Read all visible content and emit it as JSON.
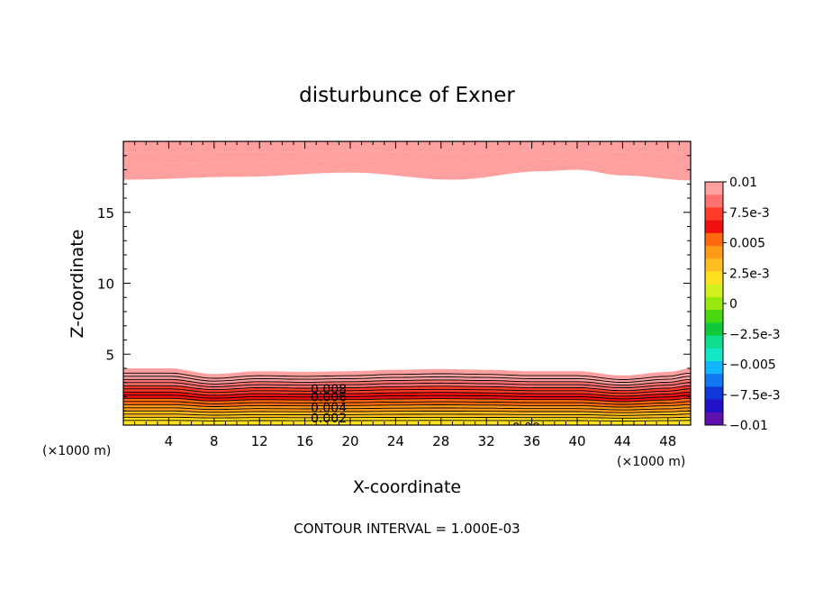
{
  "chart_data": {
    "type": "contour",
    "title": "disturbunce of Exner",
    "xlabel": "X-coordinate",
    "ylabel": "Z-coordinate",
    "x_unit_left": "(×1000 m)",
    "x_unit_right": "(×1000 m)",
    "footer": "CONTOUR INTERVAL = 1.000E-03",
    "xlim": [
      0,
      50
    ],
    "ylim": [
      0,
      20
    ],
    "x_ticks": [
      4,
      8,
      12,
      16,
      20,
      24,
      28,
      32,
      36,
      40,
      44,
      48
    ],
    "y_ticks": [
      5,
      10,
      15
    ],
    "contour_interval": 0.001,
    "contour_labels": [
      {
        "text": "0.008",
        "x": 18.1,
        "y": 2.55
      },
      {
        "text": "0.006",
        "x": 18.1,
        "y": 2.0
      },
      {
        "text": "0.004",
        "x": 18.1,
        "y": 1.25
      },
      {
        "text": "0.002",
        "x": 18.1,
        "y": 0.5
      },
      {
        "text": "0.00",
        "x": 35.5,
        "y": -0.15
      }
    ],
    "lower_layer": {
      "top_height_profile": {
        "x": [
          0,
          4,
          8,
          12,
          16,
          20,
          24,
          28,
          32,
          36,
          40,
          44,
          48,
          50
        ],
        "z": [
          4.0,
          4.0,
          3.6,
          3.8,
          3.75,
          3.8,
          3.9,
          3.95,
          3.9,
          3.8,
          3.8,
          3.5,
          3.75,
          4.0
        ]
      },
      "band_values": [
        0.002,
        0.0025,
        0.003,
        0.0035,
        0.004,
        0.0045,
        0.005,
        0.0055,
        0.006,
        0.0065,
        0.007,
        0.0075,
        0.008,
        0.0085,
        0.009,
        0.0095,
        0.01
      ]
    },
    "upper_layer": {
      "bottom_height_profile": {
        "x": [
          0,
          10,
          20,
          29,
          37,
          40,
          44,
          50
        ],
        "z": [
          17.3,
          17.5,
          17.8,
          17.3,
          17.9,
          18.0,
          17.6,
          17.25
        ]
      },
      "band_values": [
        0.009,
        0.0095,
        0.01
      ]
    },
    "colorbar": {
      "labels": [
        "0.01",
        "7.5e-3",
        "0.005",
        "2.5e-3",
        "0",
        "−2.5e-3",
        "−0.005",
        "−7.5e-3",
        "−0.01"
      ],
      "min": -0.01,
      "max": 0.01,
      "colors": [
        "#ffa0a0",
        "#ff7070",
        "#ff3c2a",
        "#ee1010",
        "#ff6a10",
        "#ff9a18",
        "#ffbe20",
        "#ffe020",
        "#d2f020",
        "#9ae810",
        "#48d810",
        "#10c838",
        "#10dc8e",
        "#10e8c8",
        "#10b4ff",
        "#1078f0",
        "#1038d8",
        "#2010c8",
        "#6010b0"
      ]
    }
  }
}
